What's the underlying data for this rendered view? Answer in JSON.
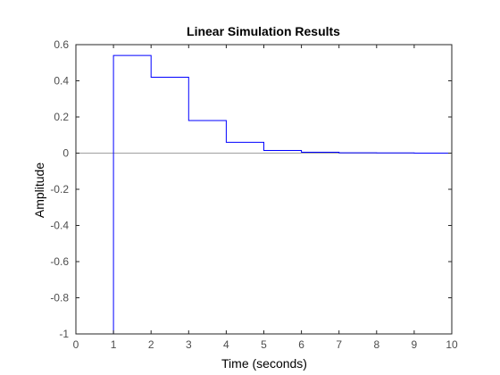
{
  "chart_data": {
    "type": "line",
    "title": "Linear Simulation Results",
    "xlabel": "Time (seconds)",
    "ylabel": "Amplitude",
    "xlim": [
      0,
      10
    ],
    "ylim": [
      -1,
      0.6
    ],
    "xticks": [
      0,
      1,
      2,
      3,
      4,
      5,
      6,
      7,
      8,
      9,
      10
    ],
    "yticks": [
      -1,
      -0.8,
      -0.6,
      -0.4,
      -0.2,
      0,
      0.2,
      0.4,
      0.6
    ],
    "xtick_labels": [
      "0",
      "1",
      "2",
      "3",
      "4",
      "5",
      "6",
      "7",
      "8",
      "9",
      "10"
    ],
    "ytick_labels": [
      "-1",
      "-0.8",
      "-0.6",
      "-0.4",
      "-0.2",
      "0",
      "0.2",
      "0.4",
      "0.6"
    ],
    "grid": false,
    "box": true,
    "reference_line": {
      "y": 0,
      "color": "#a0a0a0"
    },
    "series": [
      {
        "style": "stairs",
        "color": "#0000ff",
        "x": [
          0,
          1,
          2,
          3,
          4,
          5,
          6,
          7,
          8,
          9,
          10
        ],
        "y": [
          -1,
          0.54,
          0.42,
          0.18,
          0.06,
          0.015,
          0.005,
          0.002,
          0.001,
          0.0,
          0.0
        ]
      }
    ]
  },
  "colors": {
    "axis": "#262626",
    "tick_text": "#4d4d4d",
    "background": "#ffffff",
    "series": "#0000ff",
    "zero_line": "#a0a0a0"
  }
}
